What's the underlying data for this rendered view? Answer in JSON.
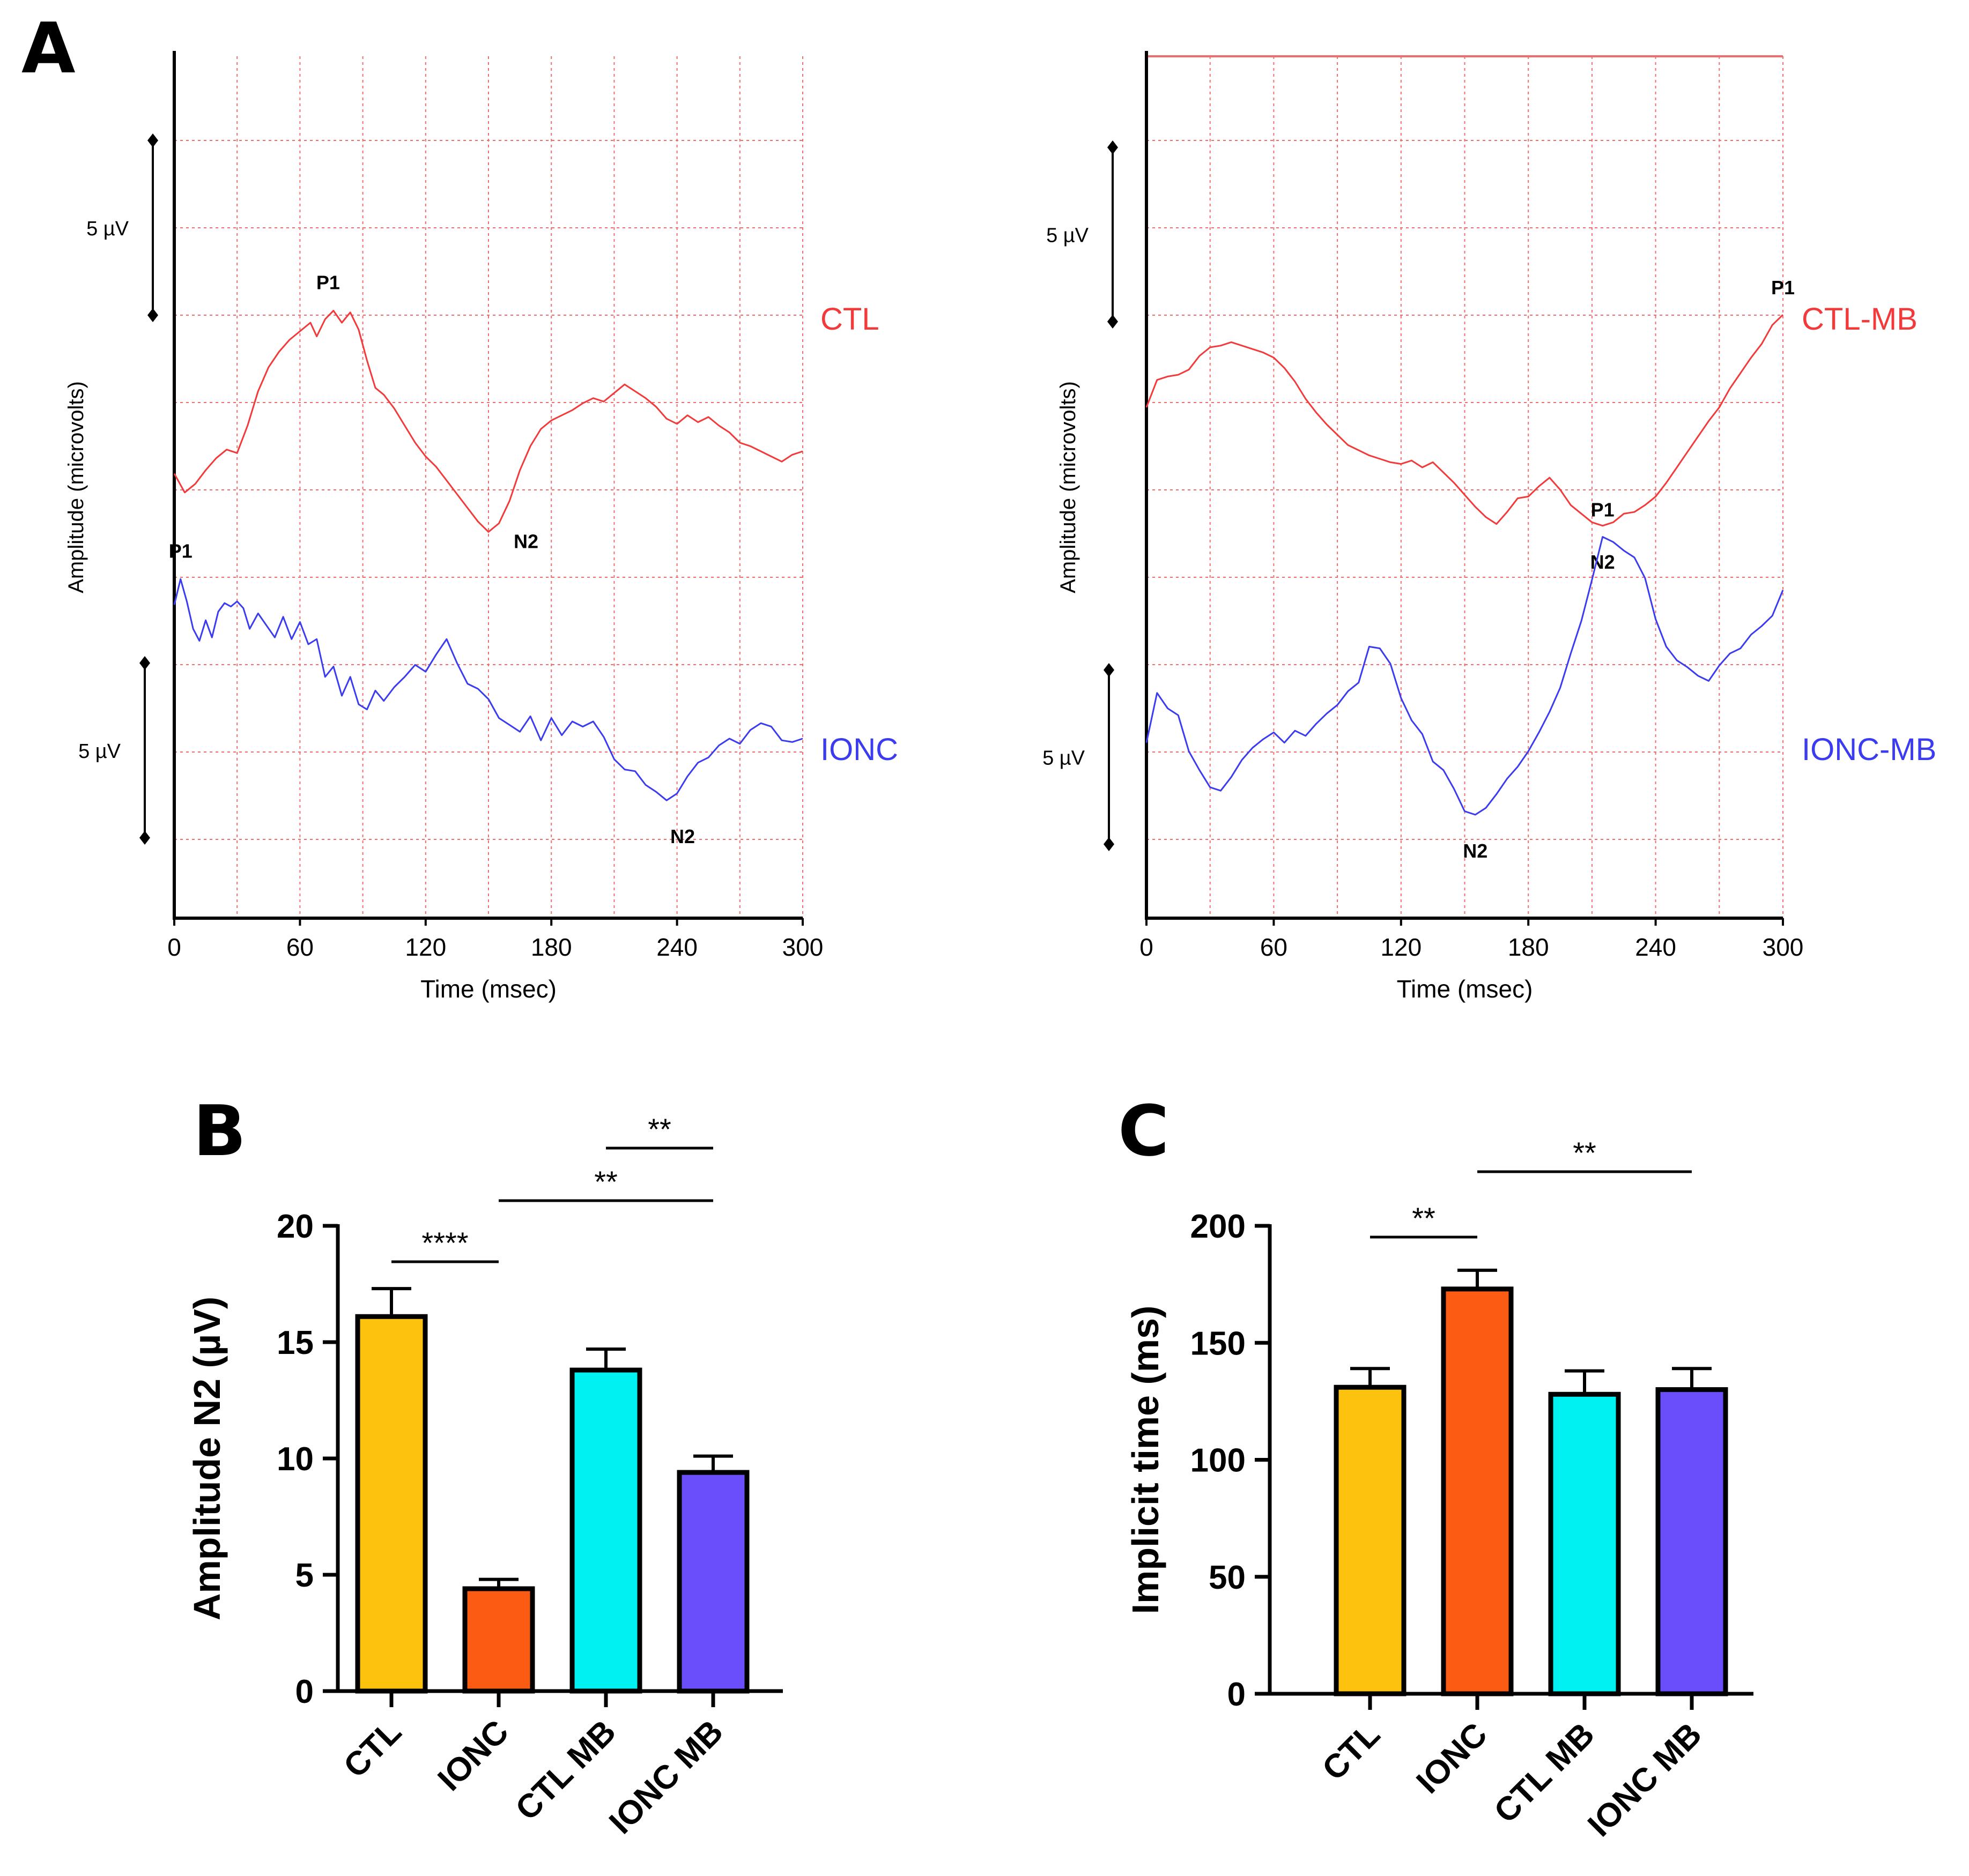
{
  "panel_labels": {
    "a": "A",
    "b": "B",
    "c": "C"
  },
  "colors": {
    "trace_ctl": "#f23a3a",
    "trace_ionc": "#3b3bf0",
    "grid": "#ef6d6d",
    "bar_ctl": "#fcc20d",
    "bar_ionc": "#fb5b12",
    "bar_ctl_mb": "#00f1f1",
    "bar_ionc_mb": "#6a4dfb"
  },
  "chart_data": [
    {
      "id": "A-left",
      "type": "line",
      "xlabel": "Time (msec)",
      "ylabel": "Amplitude (microvolts)",
      "xlim": [
        0,
        300
      ],
      "xticks": [
        "0",
        "60",
        "120",
        "180",
        "240",
        "300"
      ],
      "grid": true,
      "scale_bar_label": "5 µV",
      "series": [
        {
          "name": "CTL",
          "trough_label": "N2",
          "peak_label": "P1",
          "x": [
            0,
            5,
            10,
            15,
            20,
            25,
            30,
            35,
            40,
            45,
            50,
            55,
            60,
            65,
            68,
            72,
            76,
            80,
            84,
            88,
            92,
            96,
            100,
            105,
            110,
            115,
            120,
            125,
            130,
            135,
            140,
            145,
            150,
            155,
            160,
            165,
            170,
            175,
            180,
            185,
            190,
            195,
            200,
            205,
            210,
            215,
            220,
            225,
            230,
            235,
            240,
            245,
            250,
            255,
            260,
            265,
            270,
            275,
            280,
            285,
            290,
            295,
            300
          ],
          "y": [
            5.2,
            4.1,
            4.6,
            5.4,
            6.1,
            6.6,
            6.4,
            8.0,
            10.0,
            11.4,
            12.3,
            13.0,
            13.5,
            14.0,
            13.2,
            14.2,
            14.7,
            14.0,
            14.6,
            13.6,
            11.8,
            10.2,
            9.8,
            9.0,
            8.0,
            7.0,
            6.2,
            5.6,
            4.8,
            4.0,
            3.2,
            2.4,
            1.8,
            2.3,
            3.6,
            5.4,
            6.8,
            7.8,
            8.3,
            8.6,
            8.9,
            9.3,
            9.6,
            9.4,
            9.9,
            10.4,
            10.0,
            9.6,
            9.1,
            8.4,
            8.1,
            8.6,
            8.2,
            8.5,
            8.0,
            7.6,
            7.0,
            6.8,
            6.5,
            6.2,
            5.9,
            6.3,
            6.5
          ]
        },
        {
          "name": "IONC",
          "trough_label": "N2",
          "peak_label": "P1",
          "x": [
            0,
            3,
            6,
            9,
            12,
            15,
            18,
            21,
            24,
            27,
            30,
            33,
            36,
            40,
            44,
            48,
            52,
            56,
            60,
            64,
            68,
            72,
            76,
            80,
            84,
            88,
            92,
            96,
            100,
            105,
            110,
            115,
            120,
            125,
            130,
            135,
            140,
            145,
            150,
            155,
            160,
            165,
            170,
            175,
            180,
            185,
            190,
            195,
            200,
            205,
            210,
            215,
            220,
            225,
            230,
            235,
            240,
            245,
            250,
            255,
            260,
            265,
            270,
            275,
            280,
            285,
            290,
            295,
            300
          ],
          "y": [
            -1.2,
            0.3,
            -1.0,
            -2.6,
            -3.3,
            -2.1,
            -3.1,
            -1.6,
            -1.1,
            -1.3,
            -1.0,
            -1.4,
            -2.6,
            -1.7,
            -2.4,
            -3.1,
            -1.9,
            -3.2,
            -2.2,
            -3.5,
            -3.2,
            -5.4,
            -4.8,
            -6.5,
            -5.4,
            -7.0,
            -7.3,
            -6.2,
            -6.8,
            -6.0,
            -5.4,
            -4.7,
            -5.1,
            -4.1,
            -3.2,
            -4.6,
            -5.8,
            -6.1,
            -6.7,
            -7.8,
            -8.2,
            -8.6,
            -7.7,
            -9.1,
            -7.8,
            -8.8,
            -8.0,
            -8.3,
            -8.0,
            -8.9,
            -10.2,
            -10.8,
            -10.9,
            -11.7,
            -12.1,
            -12.6,
            -12.2,
            -11.2,
            -10.4,
            -10.1,
            -9.4,
            -9.0,
            -9.3,
            -8.5,
            -8.1,
            -8.3,
            -9.1,
            -9.2,
            -9.0
          ]
        }
      ]
    },
    {
      "id": "A-right",
      "type": "line",
      "xlabel": "Time (msec)",
      "ylabel": "Amplitude (microvolts)",
      "xlim": [
        0,
        300
      ],
      "xticks": [
        "0",
        "60",
        "120",
        "180",
        "240",
        "300"
      ],
      "grid": true,
      "scale_bar_label": "5 µV",
      "series": [
        {
          "name": "CTL-MB",
          "trough_label": "N2",
          "peak_label": "P1",
          "x": [
            0,
            5,
            10,
            15,
            20,
            25,
            30,
            35,
            40,
            45,
            50,
            55,
            60,
            65,
            70,
            75,
            80,
            85,
            90,
            95,
            100,
            105,
            110,
            115,
            120,
            125,
            130,
            135,
            140,
            145,
            150,
            155,
            160,
            165,
            170,
            175,
            180,
            185,
            190,
            195,
            200,
            205,
            210,
            215,
            220,
            225,
            230,
            235,
            240,
            245,
            250,
            255,
            260,
            265,
            270,
            275,
            280,
            285,
            290,
            295,
            300
          ],
          "y": [
            10.0,
            11.6,
            11.8,
            11.9,
            12.2,
            13.0,
            13.5,
            13.6,
            13.8,
            13.6,
            13.4,
            13.2,
            12.9,
            12.3,
            11.5,
            10.5,
            9.7,
            9.0,
            8.4,
            7.8,
            7.5,
            7.2,
            7.0,
            6.8,
            6.7,
            6.9,
            6.5,
            6.8,
            6.2,
            5.6,
            4.9,
            4.2,
            3.6,
            3.2,
            3.9,
            4.7,
            4.8,
            5.4,
            5.9,
            5.2,
            4.3,
            3.8,
            3.3,
            3.1,
            3.3,
            3.8,
            3.9,
            4.3,
            4.8,
            5.6,
            6.5,
            7.4,
            8.3,
            9.2,
            10.0,
            11.1,
            12.0,
            12.9,
            13.7,
            14.8,
            15.4
          ]
        },
        {
          "name": "IONC-MB",
          "trough_label": "N2",
          "peak_label": "P1",
          "x": [
            0,
            5,
            10,
            15,
            20,
            25,
            30,
            35,
            40,
            45,
            50,
            55,
            60,
            65,
            70,
            75,
            80,
            85,
            90,
            95,
            100,
            105,
            110,
            115,
            120,
            125,
            130,
            135,
            140,
            145,
            150,
            155,
            160,
            165,
            170,
            175,
            180,
            185,
            190,
            195,
            200,
            205,
            210,
            215,
            220,
            225,
            230,
            235,
            240,
            245,
            250,
            255,
            260,
            265,
            270,
            275,
            280,
            285,
            290,
            295,
            300
          ],
          "y": [
            -5.8,
            -2.9,
            -3.8,
            -4.2,
            -6.3,
            -7.4,
            -8.4,
            -8.6,
            -7.8,
            -6.8,
            -6.1,
            -5.6,
            -5.2,
            -5.8,
            -5.1,
            -5.4,
            -4.7,
            -4.1,
            -3.6,
            -2.8,
            -2.3,
            -0.2,
            -0.3,
            -1.2,
            -3.2,
            -4.5,
            -5.3,
            -6.9,
            -7.4,
            -8.5,
            -9.8,
            -10.0,
            -9.6,
            -8.8,
            -7.9,
            -7.2,
            -6.3,
            -5.2,
            -4.0,
            -2.6,
            -0.6,
            1.3,
            3.7,
            6.2,
            5.9,
            5.4,
            5.0,
            3.8,
            1.4,
            -0.2,
            -1.0,
            -1.4,
            -1.9,
            -2.2,
            -1.3,
            -0.6,
            -0.3,
            0.5,
            1.0,
            1.6,
            3.1
          ]
        }
      ]
    },
    {
      "id": "B",
      "type": "bar",
      "title": "",
      "xlabel": "",
      "ylabel": "Amplitude N2 (µV)",
      "ylim": [
        0,
        20
      ],
      "yticks": [
        "0",
        "5",
        "10",
        "15",
        "20"
      ],
      "categories": [
        "CTL",
        "IONC",
        "CTL MB",
        "IONC MB"
      ],
      "values": [
        16.1,
        4.4,
        13.8,
        9.4
      ],
      "errors": [
        1.2,
        0.4,
        0.9,
        0.7
      ],
      "significance": [
        {
          "from": "CTL",
          "to": "IONC",
          "label": "****"
        },
        {
          "from": "IONC",
          "to": "IONC MB",
          "label": "**"
        },
        {
          "from": "CTL MB",
          "to": "IONC MB",
          "label": "**"
        }
      ]
    },
    {
      "id": "C",
      "type": "bar",
      "title": "",
      "xlabel": "",
      "ylabel": "Implicit time (ms)",
      "ylim": [
        0,
        200
      ],
      "yticks": [
        "0",
        "50",
        "100",
        "150",
        "200"
      ],
      "categories": [
        "CTL",
        "IONC",
        "CTL MB",
        "IONC MB"
      ],
      "values": [
        131,
        173,
        128,
        130
      ],
      "errors": [
        8,
        8,
        10,
        9
      ],
      "significance": [
        {
          "from": "CTL",
          "to": "IONC",
          "label": "**"
        },
        {
          "from": "IONC",
          "to": "IONC MB",
          "label": "**"
        }
      ]
    }
  ]
}
